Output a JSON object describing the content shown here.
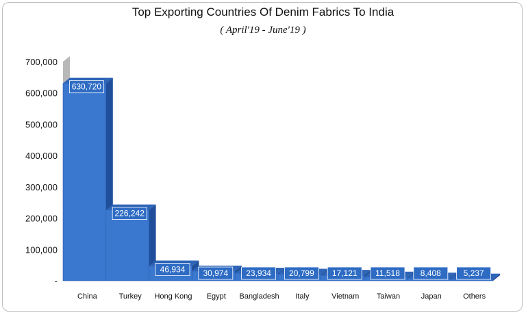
{
  "chart_data": {
    "type": "bar",
    "title": "Top Exporting Countries Of Denim Fabrics To India",
    "subtitle": "( April'19 - June'19 )",
    "categories": [
      "China",
      "Turkey",
      "Hong Kong",
      "Egypt",
      "Bangladesh",
      "Italy",
      "Vietnam",
      "Taiwan",
      "Japan",
      "Others"
    ],
    "values": [
      630720,
      226242,
      46934,
      30974,
      23934,
      20799,
      17121,
      11518,
      8408,
      5237
    ],
    "data_labels": [
      "630,720",
      "226,242",
      "46,934",
      "30,974",
      "23,934",
      "20,799",
      "17,121",
      "11,518",
      "8,408",
      "5,237"
    ],
    "y_ticks": [
      0,
      100000,
      200000,
      300000,
      400000,
      500000,
      600000,
      700000
    ],
    "y_tick_labels": [
      "-",
      "100,000",
      "200,000",
      "300,000",
      "400,000",
      "500,000",
      "600,000",
      "700,000"
    ],
    "ylim": [
      0,
      700000
    ],
    "xlabel": "",
    "ylabel": "",
    "grid": false,
    "legend": "none",
    "colors": {
      "bar_front": "#3a78d0",
      "bar_side": "#1f4f9a",
      "bar_top": "#2f66b8",
      "label_box": "#2e6cc4"
    }
  }
}
